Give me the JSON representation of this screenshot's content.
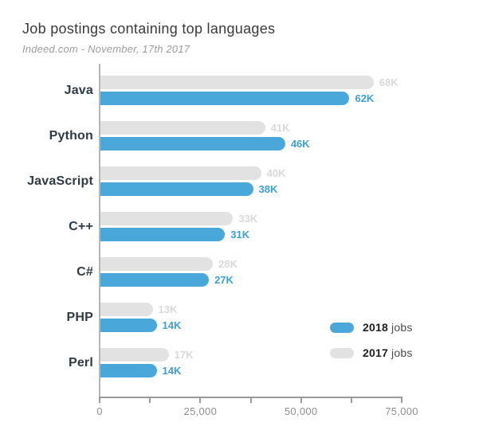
{
  "header": {
    "title": "Job postings containing top languages",
    "subtitle": "Indeed.com - November, 17th 2017"
  },
  "chart_data": {
    "type": "bar",
    "orientation": "horizontal",
    "title": "Job postings containing top languages",
    "subtitle": "Indeed.com - November, 17th 2017",
    "categories": [
      "Java",
      "Python",
      "JavaScript",
      "C++",
      "C#",
      "PHP",
      "Perl"
    ],
    "series": [
      {
        "name": "2017 jobs",
        "color": "#e2e2e3",
        "label_color": "#d8d8d8",
        "values": [
          68000,
          41000,
          40000,
          33000,
          28000,
          13000,
          17000
        ],
        "value_labels": [
          "68K",
          "41K",
          "40K",
          "33K",
          "28K",
          "13K",
          "17K"
        ]
      },
      {
        "name": "2018 jobs",
        "color": "#4aa7d9",
        "label_color": "#3d9fd2",
        "values": [
          62000,
          46000,
          38000,
          31000,
          27000,
          14000,
          14000
        ],
        "value_labels": [
          "62K",
          "46K",
          "38K",
          "31K",
          "27K",
          "14K",
          "14K"
        ]
      }
    ],
    "xlim": [
      0,
      75000
    ],
    "x_ticks": [
      {
        "value": 0,
        "label": "0"
      },
      {
        "value": 12500,
        "label": ""
      },
      {
        "value": 25000,
        "label": "25,000"
      },
      {
        "value": 37500,
        "label": ""
      },
      {
        "value": 50000,
        "label": "50,000"
      },
      {
        "value": 62500,
        "label": ""
      },
      {
        "value": 75000,
        "label": "75,000"
      }
    ],
    "legend": {
      "position": "inside-bottom-right",
      "items": [
        {
          "year": "2018",
          "suffix": "jobs",
          "color": "#4aa7d9"
        },
        {
          "year": "2017",
          "suffix": "jobs",
          "color": "#e2e2e3"
        }
      ]
    },
    "grid": false
  }
}
